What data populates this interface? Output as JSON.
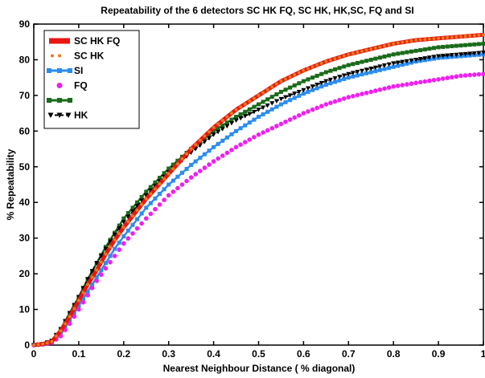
{
  "chart_data": {
    "type": "line",
    "title": "Repeatability of the 6 detectors SC HK FQ, SC HK, HK,SC, FQ and SI",
    "xlabel": "Nearest Neighbour Distance ( % diagonal)",
    "ylabel": "% Repeatability",
    "xlim": [
      0,
      1
    ],
    "ylim": [
      0,
      90
    ],
    "xticks": [
      "0",
      "0.1",
      "0.2",
      "0.3",
      "0.4",
      "0.5",
      "0.6",
      "0.7",
      "0.8",
      "0.9",
      "1"
    ],
    "yticks": [
      "0",
      "10",
      "20",
      "30",
      "40",
      "50",
      "60",
      "70",
      "80",
      "90"
    ],
    "grid": false,
    "legend_position": "top-left",
    "x": [
      0.0,
      0.02,
      0.04,
      0.06,
      0.08,
      0.1,
      0.12,
      0.14,
      0.16,
      0.18,
      0.2,
      0.25,
      0.3,
      0.35,
      0.4,
      0.45,
      0.5,
      0.55,
      0.6,
      0.65,
      0.7,
      0.75,
      0.8,
      0.85,
      0.9,
      0.95,
      1.0
    ],
    "series": [
      {
        "name": "SC HK FQ",
        "color": "#e8170f",
        "marker": "square",
        "style": "thick-line",
        "values": [
          0,
          0.3,
          1.0,
          4.0,
          8.0,
          12.5,
          17.0,
          21.0,
          25.5,
          29.5,
          33.0,
          41.0,
          48.0,
          55.0,
          61.0,
          66.0,
          70.0,
          74.0,
          77.0,
          79.5,
          81.5,
          83.0,
          84.5,
          85.5,
          86.0,
          86.5,
          87.0
        ]
      },
      {
        "name": "SC HK",
        "color": "#e8791f",
        "marker": "dot",
        "style": "dots",
        "values": [
          0,
          0.3,
          1.0,
          4.0,
          8.0,
          12.5,
          17.0,
          21.0,
          25.5,
          29.5,
          33.0,
          41.0,
          48.0,
          55.0,
          61.0,
          66.0,
          70.0,
          74.0,
          77.0,
          79.5,
          81.5,
          83.0,
          84.5,
          85.5,
          86.0,
          86.5,
          87.0
        ]
      },
      {
        "name": "SI",
        "color": "#2b8cf0",
        "marker": "square",
        "style": "line-square",
        "values": [
          0,
          0.2,
          0.8,
          3.0,
          7.0,
          11.0,
          15.0,
          19.0,
          23.0,
          27.0,
          30.5,
          38.5,
          45.0,
          50.5,
          55.5,
          60.0,
          64.0,
          67.5,
          70.5,
          73.0,
          75.0,
          76.5,
          78.0,
          79.5,
          80.5,
          81.0,
          81.5
        ]
      },
      {
        "name": "FQ",
        "color": "#f01ff0",
        "marker": "dot",
        "style": "dots",
        "values": [
          0,
          0.2,
          0.7,
          2.5,
          6.0,
          10.0,
          14.0,
          18.0,
          21.5,
          25.0,
          28.5,
          35.5,
          42.0,
          47.0,
          51.5,
          55.5,
          59.0,
          62.0,
          65.0,
          67.5,
          69.5,
          71.0,
          72.5,
          73.5,
          74.5,
          75.5,
          76.0
        ]
      },
      {
        "name": "",
        "color": "#1a6b1a",
        "marker": "square",
        "style": "line-square",
        "values": [
          0,
          0.3,
          1.2,
          4.5,
          9.0,
          13.5,
          18.5,
          23.0,
          27.5,
          31.5,
          35.5,
          43.0,
          49.5,
          55.0,
          60.0,
          64.0,
          67.5,
          71.0,
          74.0,
          76.5,
          78.5,
          80.0,
          81.5,
          82.5,
          83.5,
          84.0,
          84.5
        ]
      },
      {
        "name": "HK",
        "color": "#000000",
        "marker": "triangle-down",
        "style": "dashed-triangle",
        "values": [
          0,
          0.3,
          1.2,
          4.5,
          9.0,
          13.5,
          18.5,
          23.0,
          27.0,
          31.0,
          34.5,
          42.0,
          48.5,
          54.0,
          59.0,
          63.0,
          66.0,
          69.0,
          71.5,
          74.0,
          76.0,
          77.5,
          79.0,
          80.0,
          81.0,
          81.5,
          82.0
        ]
      }
    ]
  }
}
